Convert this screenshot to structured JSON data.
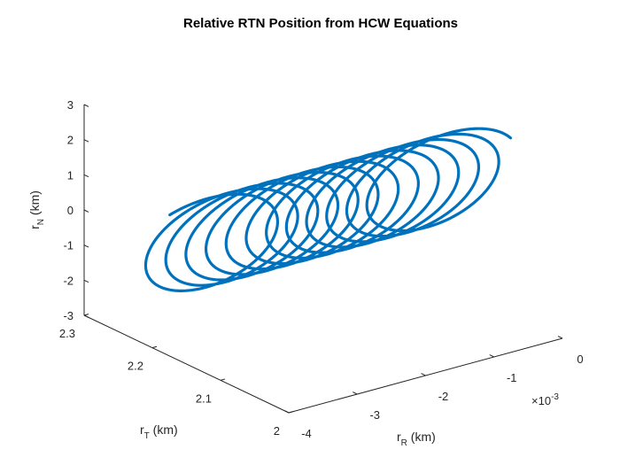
{
  "chart_data": {
    "type": "line",
    "projection": "3d",
    "title": "Relative RTN Position from HCW Equations",
    "axes": {
      "x": {
        "label_main": "r",
        "label_sub": "R",
        "label_unit": " (km)",
        "range": [
          -4,
          0
        ],
        "ticks": [
          "-4",
          "-3",
          "-2",
          "-1",
          "0"
        ],
        "exponent": "-3",
        "exponent_prefix": "×10"
      },
      "y": {
        "label_main": "r",
        "label_sub": "T",
        "label_unit": " (km)",
        "range": [
          2.0,
          2.3
        ],
        "ticks": [
          "2",
          "2.1",
          "2.2",
          "2.3"
        ]
      },
      "z": {
        "label_main": "r",
        "label_sub": "N",
        "label_unit": " (km)",
        "range": [
          -3,
          3
        ],
        "ticks": [
          "-3",
          "-2",
          "-1",
          "0",
          "1",
          "2",
          "3"
        ]
      }
    },
    "series": [
      {
        "color": "#0072BD",
        "description_params": {
          "loops": 12.25,
          "rR_center": -0.002,
          "rR_amplitude": 0.0003,
          "rT_center": 2.17,
          "rT_amplitude": 0.12,
          "rN_amplitude": 2.0,
          "rR_drift_start": -0.0036,
          "rR_drift_end": 0.0
        }
      }
    ],
    "grid": false
  }
}
